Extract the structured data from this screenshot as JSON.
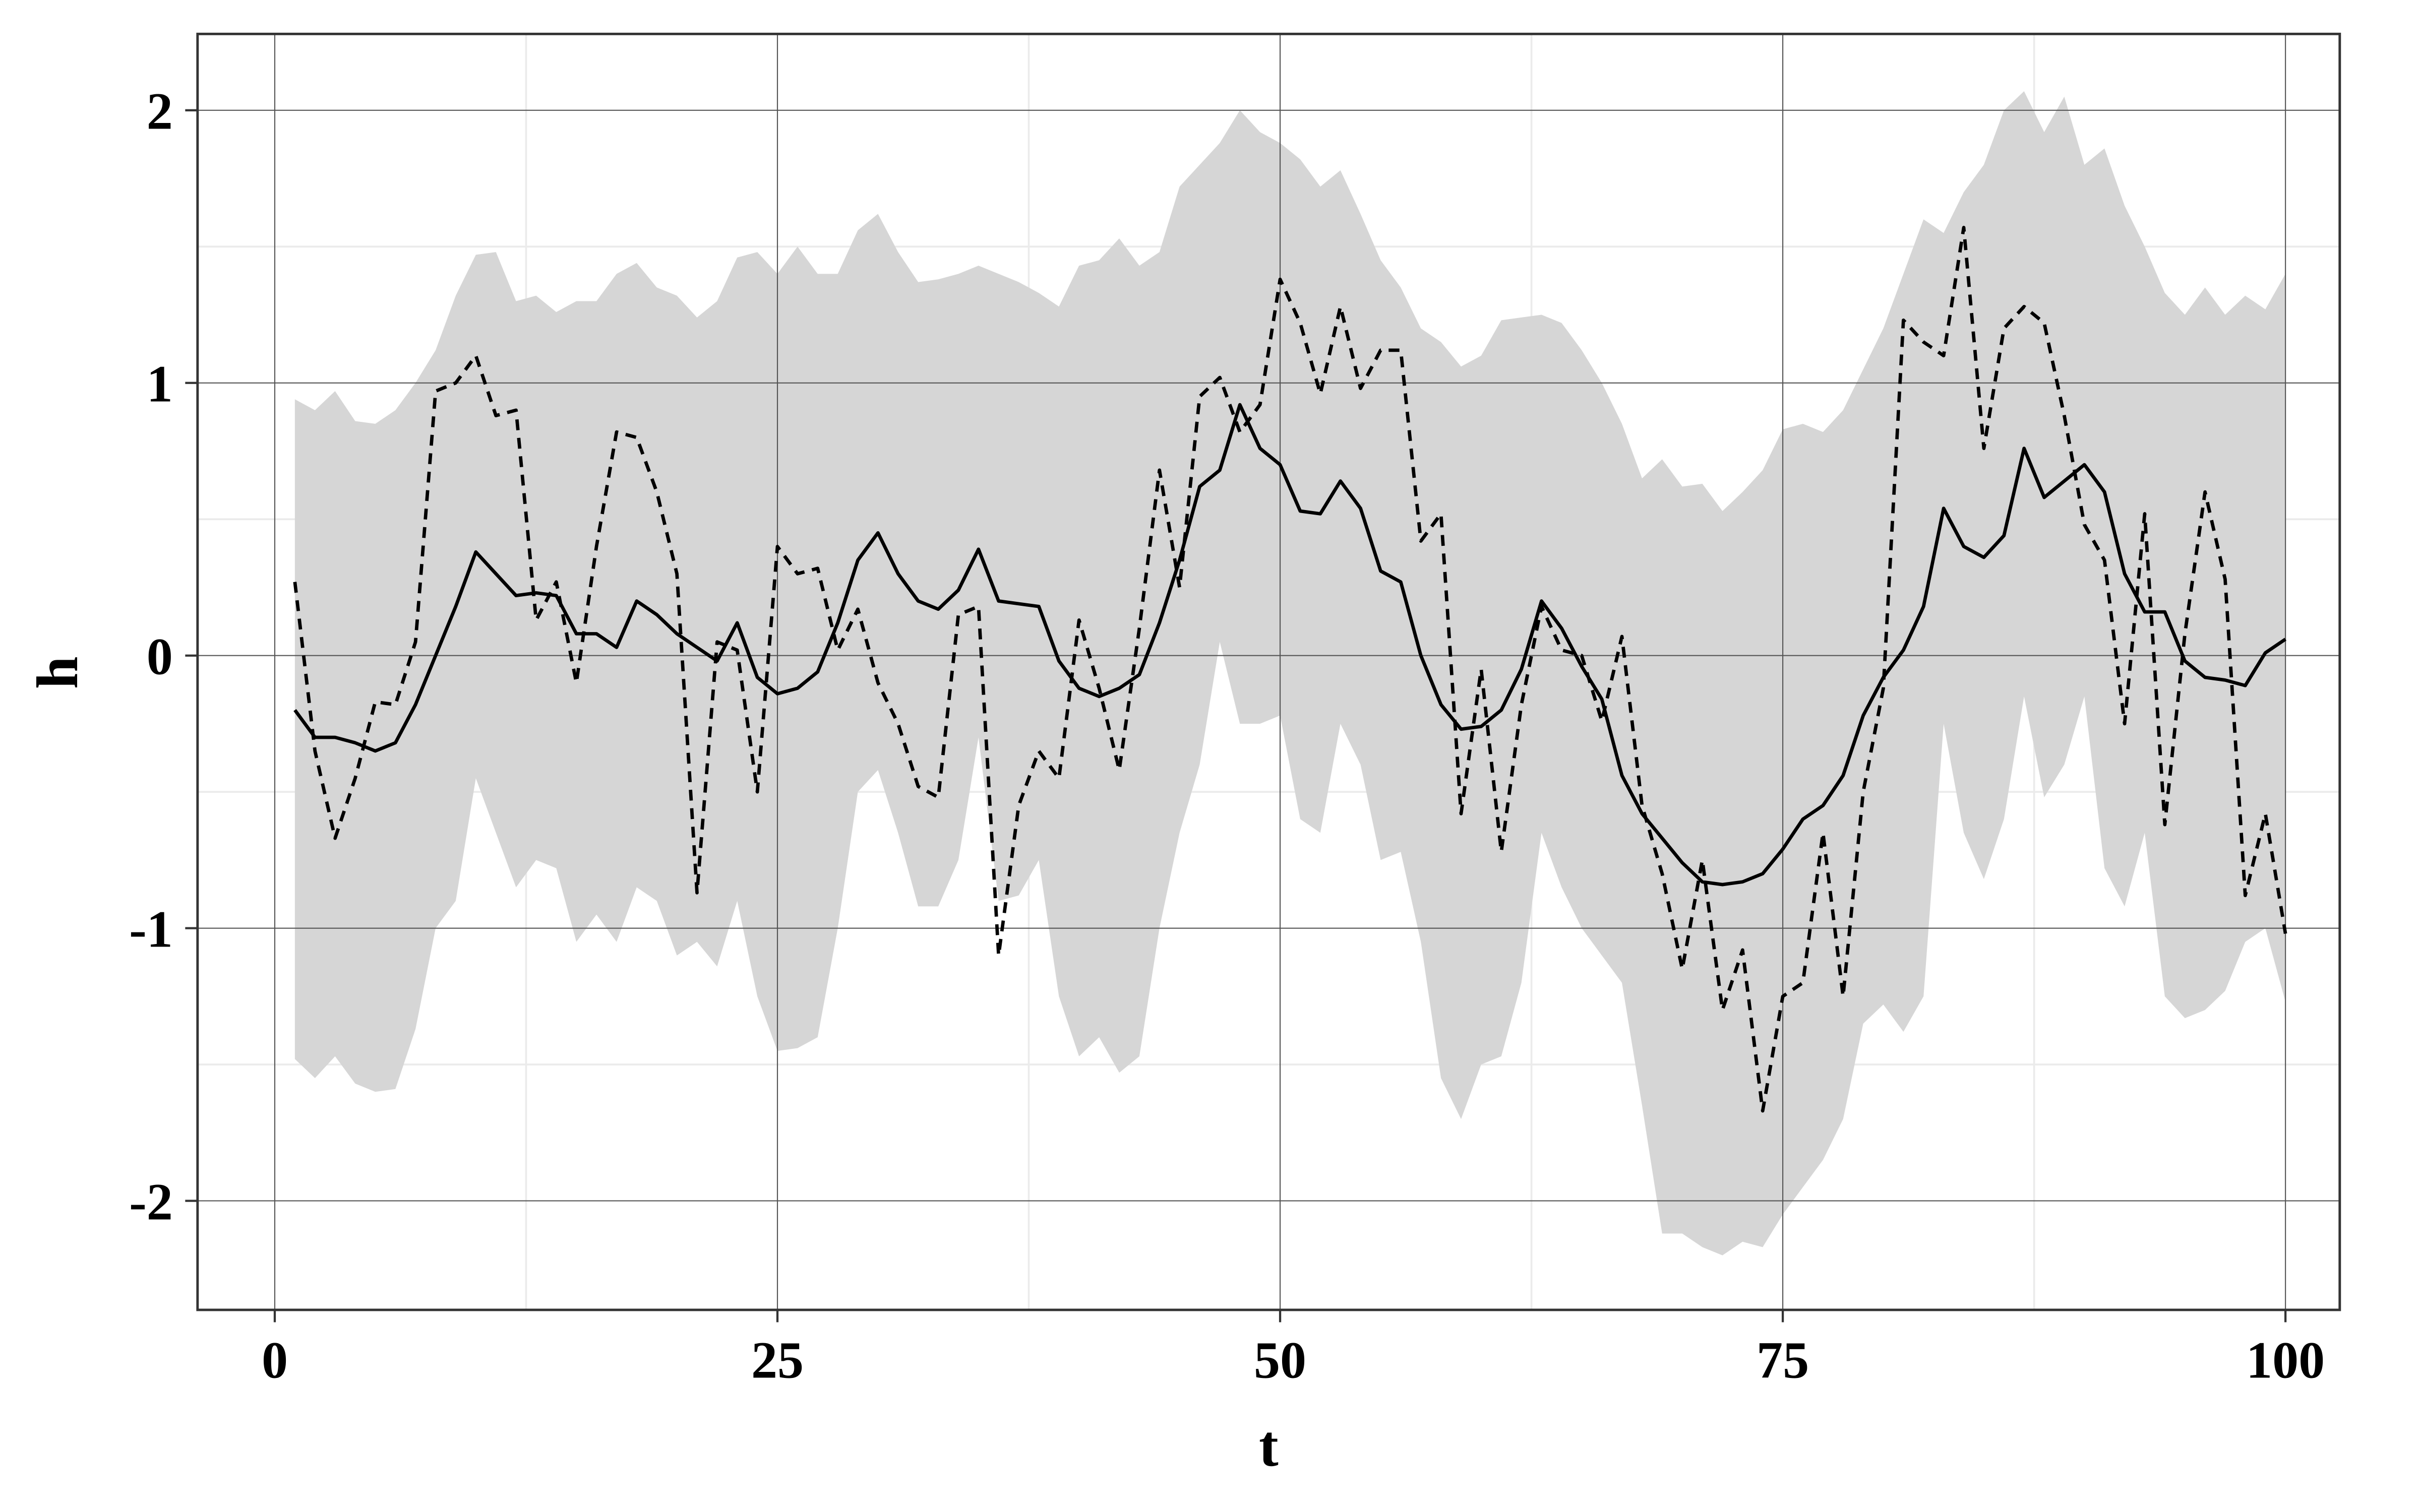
{
  "chart_data": {
    "type": "line",
    "x_label": "t",
    "y_label": "h",
    "xlim": [
      -3.84,
      102.7
    ],
    "ylim": [
      -2.4,
      2.28
    ],
    "xticks": [
      0,
      25,
      50,
      75,
      100
    ],
    "yticks": [
      -2,
      -1,
      0,
      1,
      2
    ],
    "xminor": [
      12.5,
      37.5,
      62.5,
      87.5
    ],
    "yminor": [
      -1.5,
      -0.5,
      0.5,
      1.5
    ],
    "grid": true,
    "x": [
      1,
      2,
      3,
      4,
      5,
      6,
      7,
      8,
      9,
      10,
      11,
      12,
      13,
      14,
      15,
      16,
      17,
      18,
      19,
      20,
      21,
      22,
      23,
      24,
      25,
      26,
      27,
      28,
      29,
      30,
      31,
      32,
      33,
      34,
      35,
      36,
      37,
      38,
      39,
      40,
      41,
      42,
      43,
      44,
      45,
      46,
      47,
      48,
      49,
      50,
      51,
      52,
      53,
      54,
      55,
      56,
      57,
      58,
      59,
      60,
      61,
      62,
      63,
      64,
      65,
      66,
      67,
      68,
      69,
      70,
      71,
      72,
      73,
      74,
      75,
      76,
      77,
      78,
      79,
      80,
      81,
      82,
      83,
      84,
      85,
      86,
      87,
      88,
      89,
      90,
      91,
      92,
      93,
      94,
      95,
      96,
      97,
      98,
      99,
      100
    ],
    "band": {
      "color": "#d6d6d6",
      "upper": [
        0.94,
        0.9,
        0.97,
        0.86,
        0.85,
        0.9,
        1.0,
        1.12,
        1.32,
        1.47,
        1.48,
        1.3,
        1.32,
        1.26,
        1.3,
        1.3,
        1.4,
        1.44,
        1.35,
        1.32,
        1.24,
        1.3,
        1.46,
        1.48,
        1.4,
        1.5,
        1.4,
        1.4,
        1.56,
        1.62,
        1.48,
        1.37,
        1.38,
        1.4,
        1.43,
        1.4,
        1.37,
        1.33,
        1.28,
        1.43,
        1.45,
        1.53,
        1.43,
        1.48,
        1.72,
        1.8,
        1.88,
        2.0,
        1.92,
        1.88,
        1.82,
        1.72,
        1.78,
        1.62,
        1.45,
        1.35,
        1.2,
        1.15,
        1.06,
        1.1,
        1.23,
        1.24,
        1.25,
        1.22,
        1.12,
        1.0,
        0.85,
        0.65,
        0.72,
        0.62,
        0.63,
        0.53,
        0.6,
        0.68,
        0.83,
        0.85,
        0.82,
        0.9,
        1.05,
        1.2,
        1.4,
        1.6,
        1.55,
        1.7,
        1.8,
        2.0,
        2.07,
        1.92,
        2.05,
        1.8,
        1.86,
        1.65,
        1.5,
        1.33,
        1.25,
        1.35,
        1.25,
        1.32,
        1.27,
        1.4
      ],
      "lower": [
        -1.48,
        -1.55,
        -1.47,
        -1.57,
        -1.6,
        -1.59,
        -1.37,
        -1.0,
        -0.9,
        -0.45,
        -0.65,
        -0.85,
        -0.75,
        -0.78,
        -1.05,
        -0.95,
        -1.05,
        -0.85,
        -0.9,
        -1.1,
        -1.05,
        -1.14,
        -0.9,
        -1.25,
        -1.45,
        -1.44,
        -1.4,
        -1.0,
        -0.5,
        -0.42,
        -0.65,
        -0.92,
        -0.92,
        -0.75,
        -0.3,
        -0.9,
        -0.88,
        -0.75,
        -1.25,
        -1.47,
        -1.4,
        -1.53,
        -1.47,
        -1.0,
        -0.65,
        -0.4,
        0.05,
        -0.25,
        -0.25,
        -0.22,
        -0.6,
        -0.65,
        -0.25,
        -0.4,
        -0.75,
        -0.72,
        -1.05,
        -1.55,
        -1.7,
        -1.5,
        -1.47,
        -1.2,
        -0.65,
        -0.85,
        -1.0,
        -1.1,
        -1.2,
        -1.65,
        -2.12,
        -2.12,
        -2.17,
        -2.2,
        -2.15,
        -2.17,
        -2.05,
        -1.95,
        -1.85,
        -1.7,
        -1.35,
        -1.28,
        -1.38,
        -1.25,
        -0.25,
        -0.65,
        -0.82,
        -0.6,
        -0.15,
        -0.52,
        -0.4,
        -0.15,
        -0.78,
        -0.92,
        -0.65,
        -1.25,
        -1.33,
        -1.3,
        -1.23,
        -1.05,
        -1.0,
        -1.27
      ]
    },
    "series": [
      {
        "color": "#000000",
        "dash": false,
        "values": [
          -0.2,
          -0.3,
          -0.3,
          -0.32,
          -0.35,
          -0.32,
          -0.18,
          0.0,
          0.18,
          0.38,
          0.3,
          0.22,
          0.23,
          0.22,
          0.08,
          0.08,
          0.03,
          0.2,
          0.15,
          0.08,
          0.03,
          -0.02,
          0.12,
          -0.08,
          -0.14,
          -0.12,
          -0.06,
          0.12,
          0.35,
          0.45,
          0.3,
          0.2,
          0.17,
          0.24,
          0.39,
          0.2,
          0.19,
          0.18,
          -0.02,
          -0.12,
          -0.15,
          -0.12,
          -0.07,
          0.12,
          0.35,
          0.62,
          0.68,
          0.92,
          0.76,
          0.7,
          0.53,
          0.52,
          0.64,
          0.54,
          0.31,
          0.27,
          0.0,
          -0.18,
          -0.27,
          -0.26,
          -0.2,
          -0.05,
          0.2,
          0.1,
          -0.04,
          -0.16,
          -0.44,
          -0.58,
          -0.67,
          -0.76,
          -0.83,
          -0.84,
          -0.83,
          -0.8,
          -0.71,
          -0.6,
          -0.55,
          -0.44,
          -0.22,
          -0.08,
          0.02,
          0.18,
          0.54,
          0.4,
          0.36,
          0.44,
          0.76,
          0.58,
          0.64,
          0.7,
          0.6,
          0.3,
          0.16,
          0.16,
          -0.02,
          -0.08,
          -0.09,
          -0.11,
          0.01,
          0.06
        ]
      },
      {
        "color": "#000000",
        "dash": true,
        "values": [
          0.27,
          -0.35,
          -0.67,
          -0.45,
          -0.17,
          -0.18,
          0.05,
          0.97,
          1.0,
          1.1,
          0.88,
          0.9,
          0.13,
          0.27,
          -0.1,
          0.4,
          0.82,
          0.8,
          0.6,
          0.3,
          -0.87,
          0.05,
          0.02,
          -0.5,
          0.4,
          0.3,
          0.32,
          0.02,
          0.17,
          -0.1,
          -0.25,
          -0.48,
          -0.52,
          0.15,
          0.18,
          -1.1,
          -0.55,
          -0.35,
          -0.45,
          0.13,
          -0.12,
          -0.42,
          0.1,
          0.68,
          0.25,
          0.95,
          1.02,
          0.82,
          0.92,
          1.38,
          1.22,
          0.96,
          1.28,
          0.98,
          1.12,
          1.12,
          0.42,
          0.52,
          -0.58,
          -0.05,
          -0.72,
          -0.18,
          0.18,
          0.02,
          0.0,
          -0.24,
          0.07,
          -0.55,
          -0.8,
          -1.15,
          -0.75,
          -1.3,
          -1.08,
          -1.67,
          -1.25,
          -1.2,
          -0.65,
          -1.25,
          -0.5,
          -0.12,
          1.23,
          1.15,
          1.1,
          1.57,
          0.76,
          1.2,
          1.28,
          1.22,
          0.88,
          0.48,
          0.35,
          -0.25,
          0.52,
          -0.62,
          0.08,
          0.6,
          0.28,
          -0.88,
          -0.58,
          -1.02
        ]
      }
    ]
  }
}
